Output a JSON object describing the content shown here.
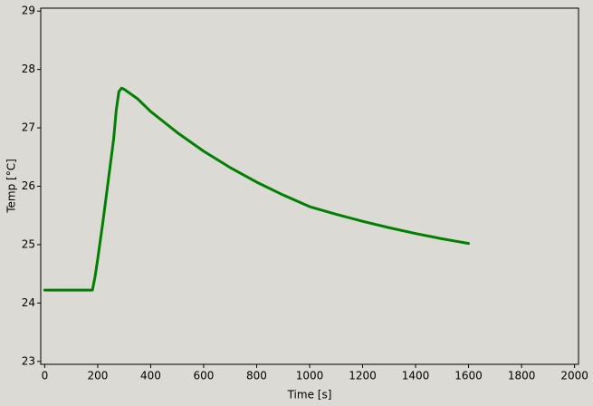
{
  "chart_data": {
    "type": "line",
    "xlabel": "Time [s]",
    "ylabel": "Temp [°C]",
    "x": [
      0,
      50,
      100,
      150,
      180,
      190,
      200,
      220,
      240,
      260,
      270,
      280,
      290,
      300,
      350,
      400,
      450,
      500,
      600,
      700,
      800,
      900,
      1000,
      1100,
      1200,
      1300,
      1400,
      1500,
      1600
    ],
    "series": [
      {
        "name": "Temp",
        "color": "#008000",
        "values": [
          24.22,
          24.22,
          24.22,
          24.22,
          24.22,
          24.45,
          24.75,
          25.4,
          26.1,
          26.8,
          27.3,
          27.62,
          27.68,
          27.66,
          27.5,
          27.28,
          27.1,
          26.92,
          26.6,
          26.32,
          26.07,
          25.85,
          25.65,
          25.52,
          25.4,
          25.29,
          25.19,
          25.1,
          25.02
        ]
      }
    ],
    "xlim": [
      -15,
      2015
    ],
    "xticks": [
      0,
      200,
      400,
      600,
      800,
      1000,
      1200,
      1400,
      1600,
      1800,
      2000
    ],
    "ylim": [
      22.95,
      29.05
    ],
    "yticks": [
      23,
      24,
      25,
      26,
      27,
      28,
      29
    ],
    "grid": false
  }
}
